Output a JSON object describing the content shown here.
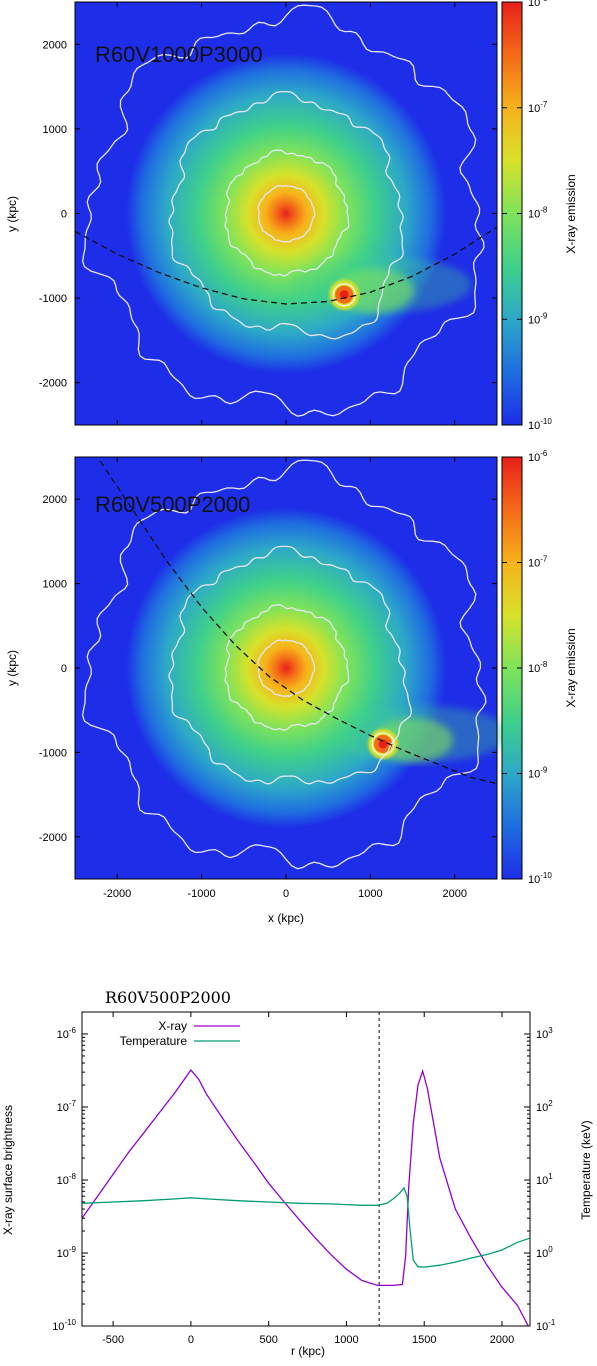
{
  "chart_data": [
    {
      "type": "heatmap",
      "title": "",
      "annotation": "R60V1000P3000",
      "xlabel": "",
      "ylabel": "y (kpc)",
      "xlim": [
        -2500,
        2500
      ],
      "ylim": [
        -2500,
        2500
      ],
      "xticks": [
        -2000,
        -1000,
        0,
        1000,
        2000
      ],
      "yticks": [
        -2000,
        -1000,
        0,
        1000,
        2000
      ],
      "colorbar": {
        "label": "X-ray emission",
        "scale": "log",
        "range": [
          1e-10,
          1e-06
        ],
        "ticks": [
          {
            "base": "10",
            "exp": "-10",
            "value": 1e-10
          },
          {
            "base": "10",
            "exp": "-9",
            "value": 1e-09
          },
          {
            "base": "10",
            "exp": "-8",
            "value": 1e-08
          },
          {
            "base": "10",
            "exp": "-7",
            "value": 1e-07
          },
          {
            "base": "10",
            "exp": "-6",
            "value": 1e-06
          }
        ]
      },
      "colormap": [
        "#1e2de8",
        "#1f6ee0",
        "#2da8c8",
        "#3fd08a",
        "#7fe35a",
        "#d7e12a",
        "#f7b21a",
        "#f46a18",
        "#e8201a"
      ],
      "main_cluster": {
        "x": 0,
        "y": 0
      },
      "subcluster": {
        "x": 690,
        "y": -960
      },
      "orbit": [
        [
          -2500,
          -210
        ],
        [
          -2000,
          -480
        ],
        [
          -1500,
          -700
        ],
        [
          -1000,
          -880
        ],
        [
          -500,
          -1010
        ],
        [
          0,
          -1070
        ],
        [
          500,
          -1040
        ],
        [
          1000,
          -930
        ],
        [
          1500,
          -740
        ],
        [
          2000,
          -480
        ],
        [
          2500,
          -160
        ]
      ]
    },
    {
      "type": "heatmap",
      "title": "",
      "annotation": "R60V500P2000",
      "xlabel": "x (kpc)",
      "ylabel": "y (kpc)",
      "xlim": [
        -2500,
        2500
      ],
      "ylim": [
        -2500,
        2500
      ],
      "xticks": [
        -2000,
        -1000,
        0,
        1000,
        2000
      ],
      "yticks": [
        -2000,
        -1000,
        0,
        1000,
        2000
      ],
      "colorbar": {
        "label": "X-ray emission",
        "scale": "log",
        "range": [
          1e-10,
          1e-06
        ],
        "ticks": [
          {
            "base": "10",
            "exp": "-10",
            "value": 1e-10
          },
          {
            "base": "10",
            "exp": "-9",
            "value": 1e-09
          },
          {
            "base": "10",
            "exp": "-8",
            "value": 1e-08
          },
          {
            "base": "10",
            "exp": "-7",
            "value": 1e-07
          },
          {
            "base": "10",
            "exp": "-6",
            "value": 1e-06
          }
        ]
      },
      "colormap": [
        "#1e2de8",
        "#1f6ee0",
        "#2da8c8",
        "#3fd08a",
        "#7fe35a",
        "#d7e12a",
        "#f7b21a",
        "#f46a18",
        "#e8201a"
      ],
      "main_cluster": {
        "x": 0,
        "y": 0
      },
      "subcluster": {
        "x": 1150,
        "y": -900
      },
      "orbit": [
        [
          -2200,
          2450
        ],
        [
          -1800,
          1850
        ],
        [
          -1400,
          1250
        ],
        [
          -1000,
          720
        ],
        [
          -600,
          270
        ],
        [
          -200,
          -100
        ],
        [
          200,
          -380
        ],
        [
          600,
          -600
        ],
        [
          1000,
          -800
        ],
        [
          1400,
          -980
        ],
        [
          1800,
          -1140
        ],
        [
          2200,
          -1300
        ],
        [
          2500,
          -1370
        ]
      ]
    },
    {
      "type": "line",
      "title": "R60V500P2000",
      "xlabel": "r (kpc)",
      "ylabel": "X-ray surface brightness",
      "y2label": "Temperature (keV)",
      "xlim": [
        -700,
        2180
      ],
      "ylim": [
        1e-10,
        2e-06
      ],
      "y2lim": [
        0.1,
        2000
      ],
      "yscale": "log",
      "y2scale": "log",
      "xticks": [
        -500,
        0,
        500,
        1000,
        1500,
        2000
      ],
      "yticks": [
        {
          "base": "10",
          "exp": "-10",
          "value": 1e-10
        },
        {
          "base": "10",
          "exp": "-9",
          "value": 1e-09
        },
        {
          "base": "10",
          "exp": "-8",
          "value": 1e-08
        },
        {
          "base": "10",
          "exp": "-7",
          "value": 1e-07
        },
        {
          "base": "10",
          "exp": "-6",
          "value": 1e-06
        }
      ],
      "y2ticks": [
        {
          "base": "10",
          "exp": "-1",
          "value": 0.1
        },
        {
          "base": "10",
          "exp": "0",
          "value": 1
        },
        {
          "base": "10",
          "exp": "1",
          "value": 10
        },
        {
          "base": "10",
          "exp": "2",
          "value": 100
        },
        {
          "base": "10",
          "exp": "3",
          "value": 1000
        }
      ],
      "legend_position": "top-left",
      "vline_x": 1210,
      "series": [
        {
          "name": "X-ray",
          "axis": "left",
          "color": "#9400d3",
          "points": [
            [
              -700,
              3e-09
            ],
            [
              -600,
              6e-09
            ],
            [
              -500,
              1.2e-08
            ],
            [
              -400,
              2.4e-08
            ],
            [
              -300,
              4.5e-08
            ],
            [
              -200,
              8.5e-08
            ],
            [
              -100,
              1.6e-07
            ],
            [
              0,
              3.2e-07
            ],
            [
              50,
              2.4e-07
            ],
            [
              100,
              1.5e-07
            ],
            [
              200,
              7.2e-08
            ],
            [
              300,
              3.5e-08
            ],
            [
              400,
              1.8e-08
            ],
            [
              500,
              9e-09
            ],
            [
              600,
              5e-09
            ],
            [
              700,
              2.8e-09
            ],
            [
              800,
              1.6e-09
            ],
            [
              900,
              9.5e-10
            ],
            [
              1000,
              6e-10
            ],
            [
              1100,
              4.2e-10
            ],
            [
              1200,
              3.6e-10
            ],
            [
              1300,
              3.6e-10
            ],
            [
              1360,
              3.7e-10
            ],
            [
              1380,
              9e-10
            ],
            [
              1400,
              8e-09
            ],
            [
              1430,
              6e-08
            ],
            [
              1460,
              2e-07
            ],
            [
              1490,
              3.1e-07
            ],
            [
              1520,
              1.8e-07
            ],
            [
              1560,
              6e-08
            ],
            [
              1600,
              2e-08
            ],
            [
              1700,
              4e-09
            ],
            [
              1800,
              1.6e-09
            ],
            [
              1900,
              7e-10
            ],
            [
              2000,
              3.4e-10
            ],
            [
              2100,
              1.9e-10
            ],
            [
              2180,
              9e-11
            ]
          ]
        },
        {
          "name": "Temperature",
          "axis": "right",
          "color": "#009e73",
          "points": [
            [
              -700,
              4.8
            ],
            [
              -500,
              5.0
            ],
            [
              -300,
              5.2
            ],
            [
              -100,
              5.5
            ],
            [
              0,
              5.7
            ],
            [
              100,
              5.5
            ],
            [
              300,
              5.2
            ],
            [
              500,
              5.0
            ],
            [
              700,
              4.8
            ],
            [
              900,
              4.7
            ],
            [
              1000,
              4.6
            ],
            [
              1100,
              4.5
            ],
            [
              1200,
              4.5
            ],
            [
              1260,
              4.8
            ],
            [
              1300,
              5.5
            ],
            [
              1340,
              6.5
            ],
            [
              1370,
              7.8
            ],
            [
              1390,
              6.0
            ],
            [
              1410,
              2.0
            ],
            [
              1430,
              0.8
            ],
            [
              1460,
              0.65
            ],
            [
              1500,
              0.64
            ],
            [
              1600,
              0.68
            ],
            [
              1700,
              0.75
            ],
            [
              1800,
              0.85
            ],
            [
              1900,
              0.95
            ],
            [
              2000,
              1.1
            ],
            [
              2100,
              1.4
            ],
            [
              2180,
              1.6
            ]
          ]
        }
      ]
    }
  ]
}
